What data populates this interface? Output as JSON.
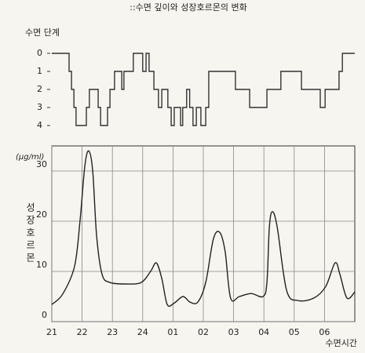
{
  "title": "::수면 깊이와 성장호르몬의 변화",
  "chart_data": [
    {
      "type": "step",
      "y_label": "수면 단계",
      "yaxis_inverted": true,
      "step": "post",
      "color": "#333333",
      "xlim": [
        21,
        31
      ],
      "ylim": [
        0,
        4
      ],
      "yticks": [
        0,
        1,
        2,
        3,
        4
      ],
      "x": [
        21.0,
        21.57,
        21.65,
        21.73,
        21.8,
        22.14,
        22.24,
        22.53,
        22.61,
        22.84,
        22.92,
        23.07,
        23.31,
        23.38,
        23.69,
        24.0,
        24.11,
        24.21,
        24.37,
        24.52,
        24.63,
        24.83,
        24.94,
        25.04,
        25.25,
        25.32,
        25.45,
        25.55,
        25.66,
        25.77,
        25.92,
        26.08,
        26.18,
        27.06,
        27.53,
        28.1,
        28.56,
        29.24,
        29.86,
        30.02,
        30.48,
        30.59,
        31.0
      ],
      "values": [
        0,
        1,
        2,
        3,
        4,
        3,
        2,
        3,
        4,
        3,
        2,
        1,
        2,
        1,
        0,
        1,
        0,
        1,
        2,
        3,
        2,
        3,
        4,
        3,
        4,
        3,
        2,
        3,
        4,
        3,
        4,
        3,
        1,
        2,
        3,
        2,
        1,
        2,
        3,
        2,
        1,
        0,
        0
      ]
    },
    {
      "type": "line",
      "y_label": "성장호르몬",
      "unit": "(μg/ml)",
      "x_label": "수면시간",
      "color": "#222222",
      "grid": true,
      "smooth": true,
      "xlim": [
        21,
        31
      ],
      "ylim": [
        0,
        35
      ],
      "yticks": [
        0,
        10,
        20,
        30
      ],
      "xticks": [
        21,
        22,
        23,
        24,
        {
          "value": 25,
          "label": "01"
        },
        {
          "value": 26,
          "label": "02"
        },
        {
          "value": 27,
          "label": "03"
        },
        {
          "value": 28,
          "label": "04"
        },
        {
          "value": 29,
          "label": "05"
        },
        {
          "value": 30,
          "label": "06"
        }
      ],
      "x": [
        21.0,
        21.36,
        21.75,
        21.93,
        22.09,
        22.22,
        22.35,
        22.48,
        22.66,
        22.92,
        23.44,
        23.95,
        24.26,
        24.45,
        24.63,
        24.81,
        25.04,
        25.33,
        25.56,
        25.82,
        26.08,
        26.33,
        26.54,
        26.72,
        26.9,
        27.19,
        27.58,
        27.97,
        28.1,
        28.18,
        28.28,
        28.44,
        28.75,
        29.13,
        29.65,
        30.04,
        30.35,
        30.51,
        30.74,
        31.0
      ],
      "values": [
        3.4,
        5.5,
        11,
        20,
        31,
        34,
        30,
        17,
        9.4,
        7.8,
        7.5,
        7.8,
        10,
        11.7,
        8.6,
        3.4,
        3.7,
        5,
        3.9,
        3.9,
        7.8,
        16.4,
        17.8,
        14,
        4.7,
        5,
        5.6,
        5,
        7.8,
        18.8,
        21.9,
        18.8,
        6.2,
        4.2,
        4.7,
        7,
        11.7,
        9.4,
        4.7,
        5.9
      ]
    }
  ]
}
